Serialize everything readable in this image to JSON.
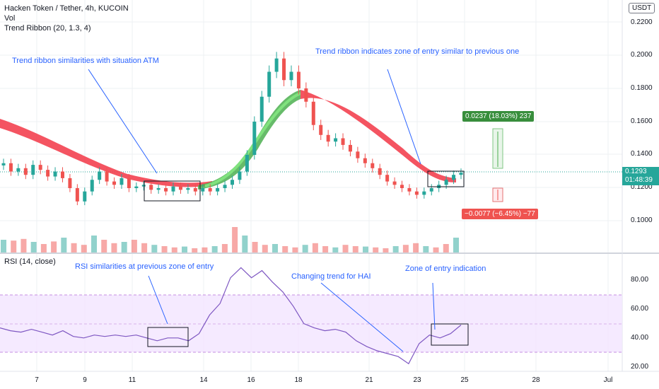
{
  "header": {
    "symbol": "Hacken Token / Tether, 4h, KUCOIN",
    "volume_label": "Vol",
    "indicator": "Trend Ribbon (20, 1.3, 4)",
    "rsi_label": "RSI (14, close)",
    "currency": "USDT"
  },
  "annotations": {
    "ribbon_similar": "Trend ribbon similarities with situation ATM",
    "ribbon_entry": "Trend ribbon indicates zone of entry similar to previous one",
    "rsi_similar": "RSI similarities at previous zone of entry",
    "changing_trend": "Changing trend for HAI",
    "zone_entry": "Zone of entry indication"
  },
  "price_tag": {
    "price": "0.1293",
    "countdown": "01:48:39"
  },
  "targets": {
    "profit": "0.0237 (18.03%) 237",
    "loss": "−0.0077 (−6.45%) −77"
  },
  "colors": {
    "up": "#26a69a",
    "down": "#ef5350",
    "ribbon_bear": "#f23645",
    "ribbon_bull": "#4caf50",
    "annotation": "#2962ff",
    "rsi_line": "#7e57c2",
    "rsi_band": "#f3e5ff"
  },
  "axis": {
    "price_ticks": [
      "0.2200",
      "0.2000",
      "0.1800",
      "0.1600",
      "0.1400",
      "0.1200",
      "0.1000"
    ],
    "rsi_ticks": [
      "80.00",
      "60.00",
      "40.00",
      "20.00"
    ],
    "dates": [
      "7",
      "9",
      "11",
      "14",
      "16",
      "18",
      "21",
      "23",
      "25",
      "28",
      "Jul"
    ]
  },
  "chart_data": {
    "type": "candlestick",
    "price_range": [
      0.08,
      0.225
    ],
    "rsi_range": [
      15,
      93
    ],
    "rsi_band": [
      30,
      70
    ],
    "close_series": [
      0.135,
      0.13,
      0.132,
      0.128,
      0.134,
      0.131,
      0.127,
      0.13,
      0.126,
      0.12,
      0.112,
      0.118,
      0.125,
      0.13,
      0.124,
      0.122,
      0.126,
      0.12,
      0.121,
      0.122,
      0.119,
      0.12,
      0.118,
      0.121,
      0.119,
      0.12,
      0.118,
      0.12,
      0.118,
      0.12,
      0.122,
      0.125,
      0.13,
      0.14,
      0.16,
      0.175,
      0.19,
      0.198,
      0.185,
      0.19,
      0.18,
      0.172,
      0.158,
      0.152,
      0.148,
      0.15,
      0.146,
      0.142,
      0.138,
      0.135,
      0.132,
      0.128,
      0.124,
      0.122,
      0.12,
      0.118,
      0.116,
      0.118,
      0.12,
      0.122,
      0.125,
      0.128,
      0.1293
    ],
    "rsi_series": [
      47,
      45,
      44,
      46,
      44,
      42,
      45,
      41,
      40,
      42,
      41,
      42,
      41,
      42,
      40,
      38,
      40,
      40,
      38,
      43,
      56,
      64,
      82,
      89,
      82,
      87,
      79,
      72,
      62,
      50,
      47,
      45,
      46,
      44,
      38,
      34,
      31,
      29,
      27,
      22,
      36,
      42,
      40,
      43,
      49
    ],
    "volume_series": [
      30,
      28,
      32,
      25,
      20,
      26,
      35,
      22,
      18,
      40,
      30,
      22,
      25,
      30,
      22,
      18,
      15,
      12,
      14,
      10,
      12,
      15,
      20,
      60,
      40,
      25,
      18,
      20,
      15,
      12,
      18,
      22,
      15,
      12,
      18,
      15,
      14,
      12,
      10,
      15,
      18,
      22,
      15,
      12,
      20,
      35
    ]
  }
}
